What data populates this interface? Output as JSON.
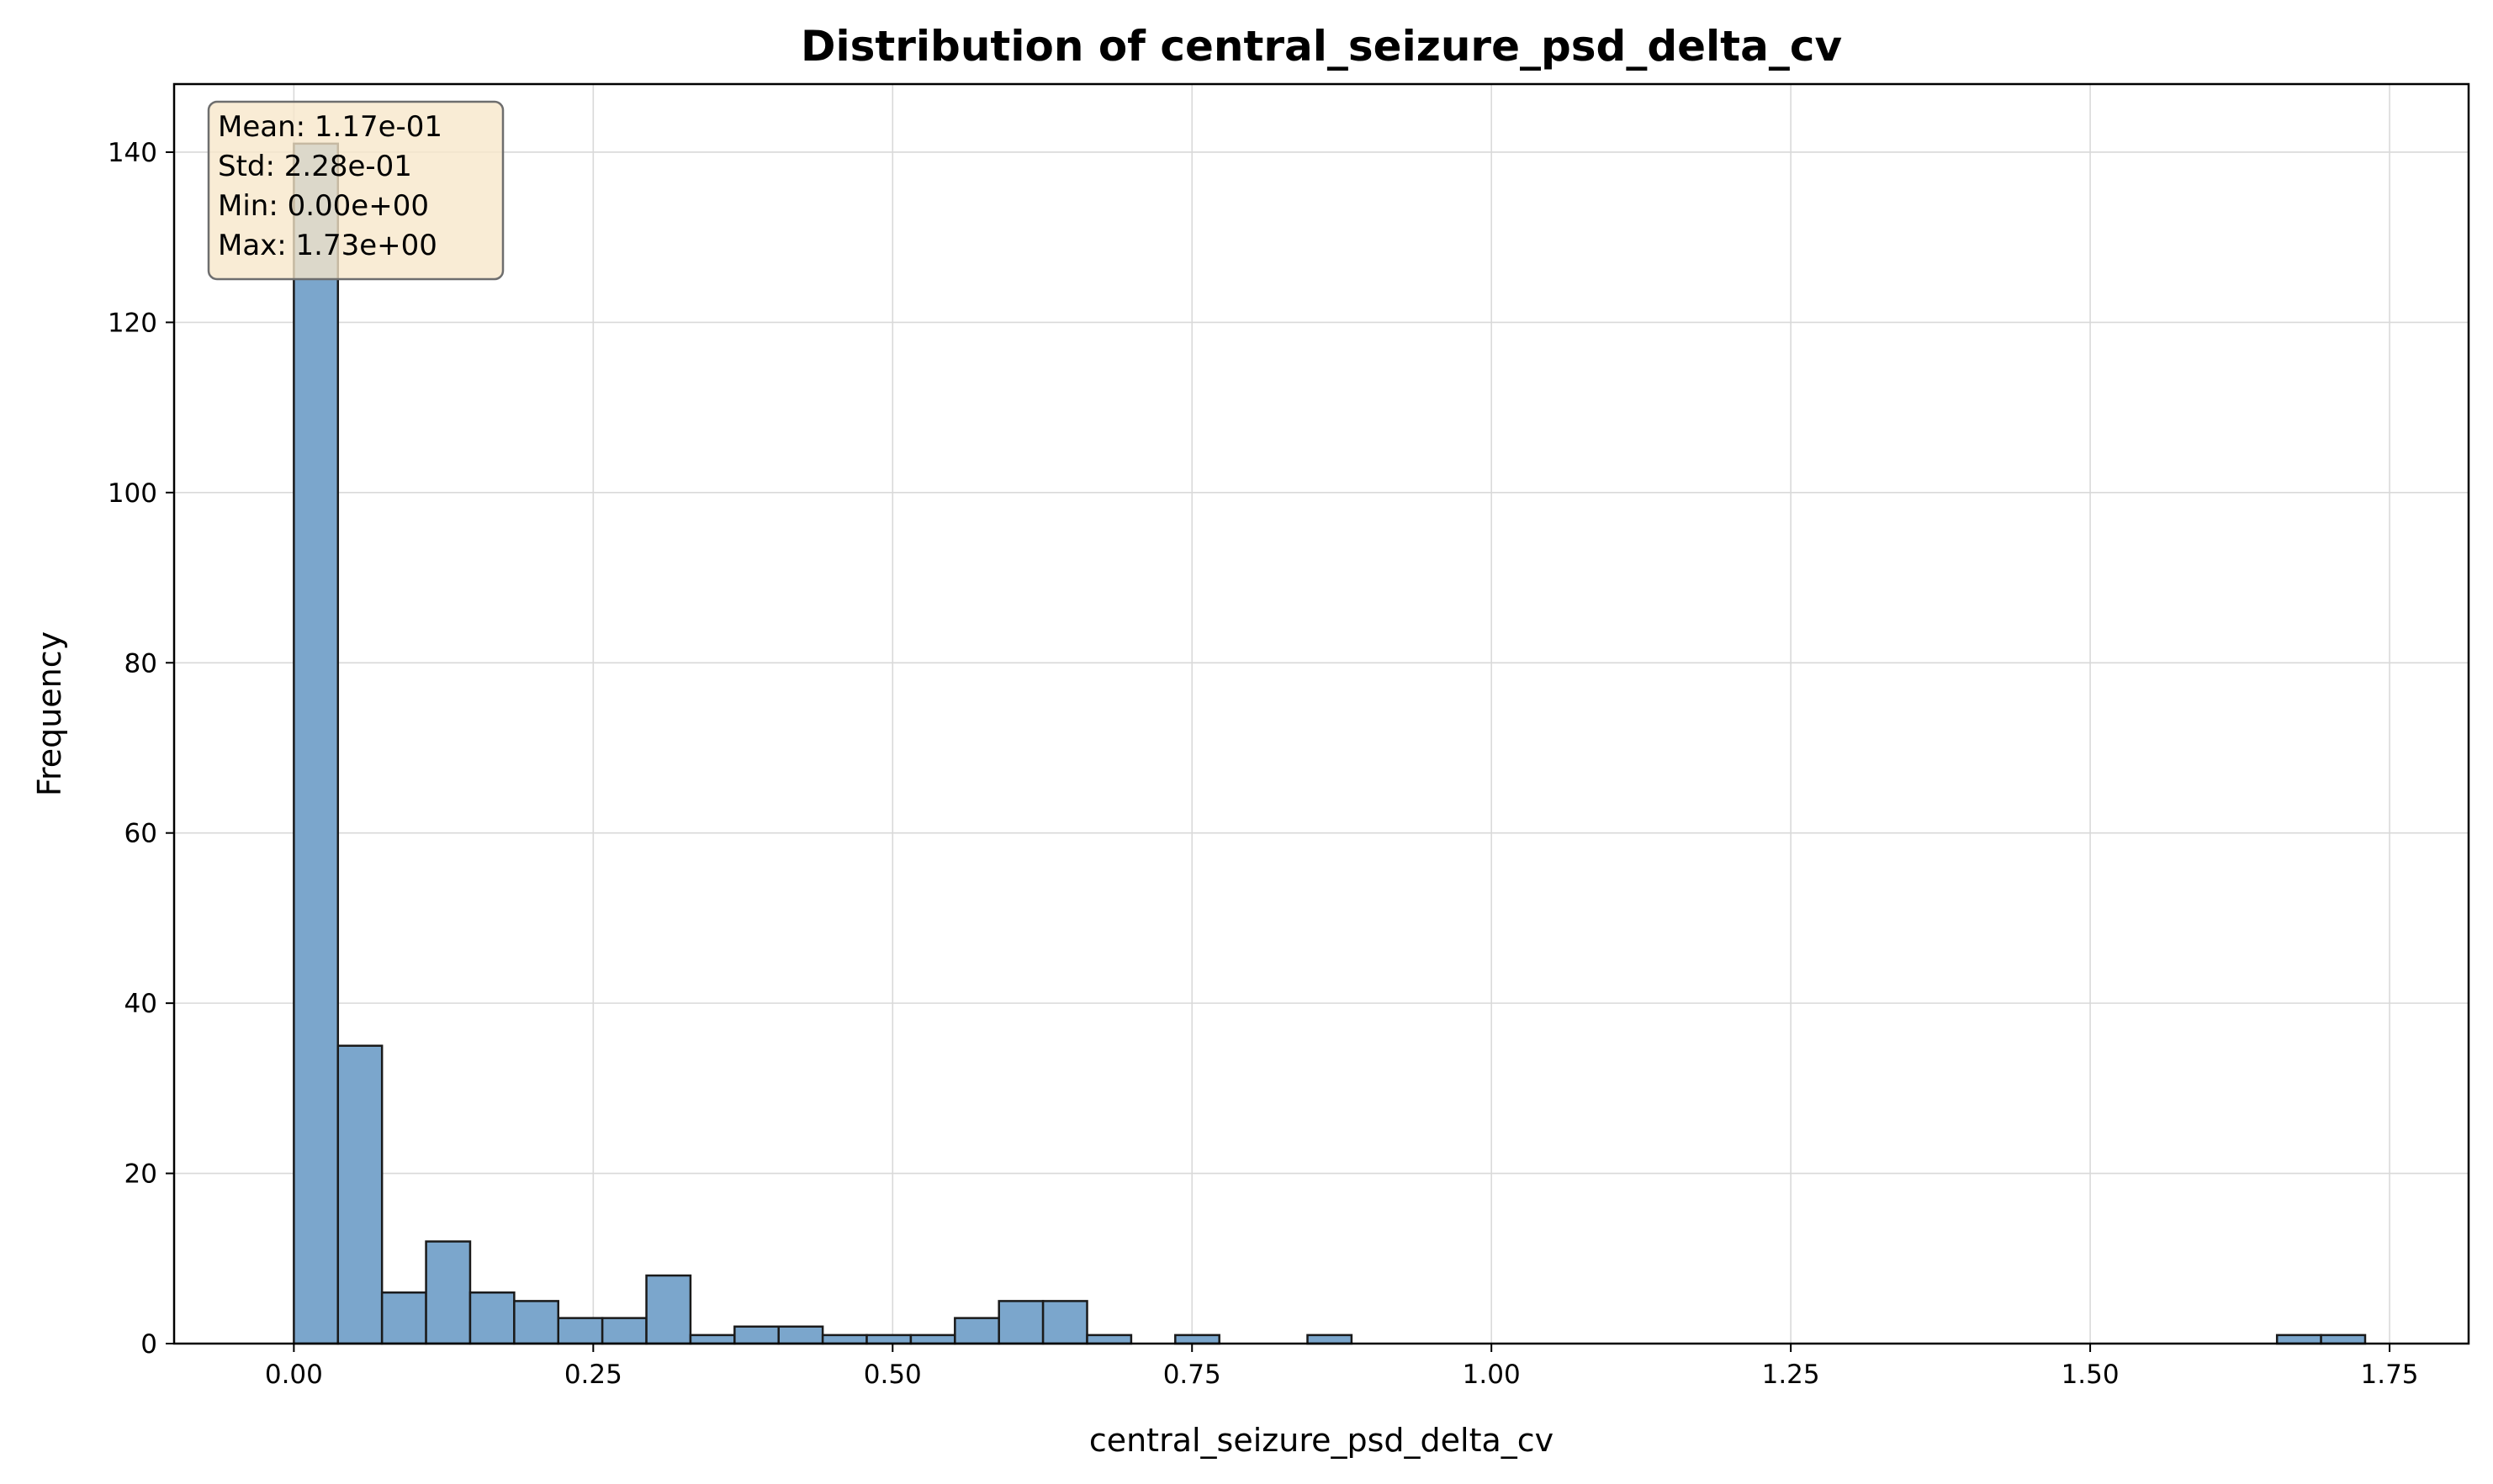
{
  "chart_data": {
    "type": "bar",
    "title": "Distribution of central_seizure_psd_delta_cv",
    "xlabel": "central_seizure_psd_delta_cv",
    "ylabel": "Frequency",
    "xlim": [
      -0.1,
      1.816
    ],
    "ylim": [
      0,
      148
    ],
    "xticks": [
      0.0,
      0.25,
      0.5,
      0.75,
      1.0,
      1.25,
      1.5,
      1.75
    ],
    "xtick_labels": [
      "0.00",
      "0.25",
      "0.50",
      "0.75",
      "1.00",
      "1.25",
      "1.50",
      "1.75"
    ],
    "yticks": [
      0,
      20,
      40,
      60,
      80,
      100,
      120,
      140
    ],
    "ytick_labels": [
      "0",
      "20",
      "40",
      "60",
      "80",
      "100",
      "120",
      "140"
    ],
    "grid": true,
    "bin_start": 0.0,
    "bin_width": 0.0368,
    "values": [
      141,
      35,
      6,
      12,
      6,
      5,
      3,
      3,
      8,
      1,
      2,
      2,
      1,
      1,
      1,
      3,
      5,
      5,
      1,
      0,
      1,
      0,
      0,
      1,
      0,
      0,
      0,
      0,
      0,
      0,
      0,
      0,
      0,
      0,
      0,
      0,
      0,
      0,
      0,
      0,
      0,
      0,
      0,
      0,
      0,
      1,
      1
    ],
    "bar_color": "#7ba6cc",
    "edge_color": "#1a1a1a",
    "stats": {
      "lines": [
        "Mean: 1.17e-01",
        "Std: 2.28e-01",
        "Min: 0.00e+00",
        "Max: 1.73e+00"
      ],
      "placement": "top-left",
      "background": "#f7e7c9"
    }
  }
}
